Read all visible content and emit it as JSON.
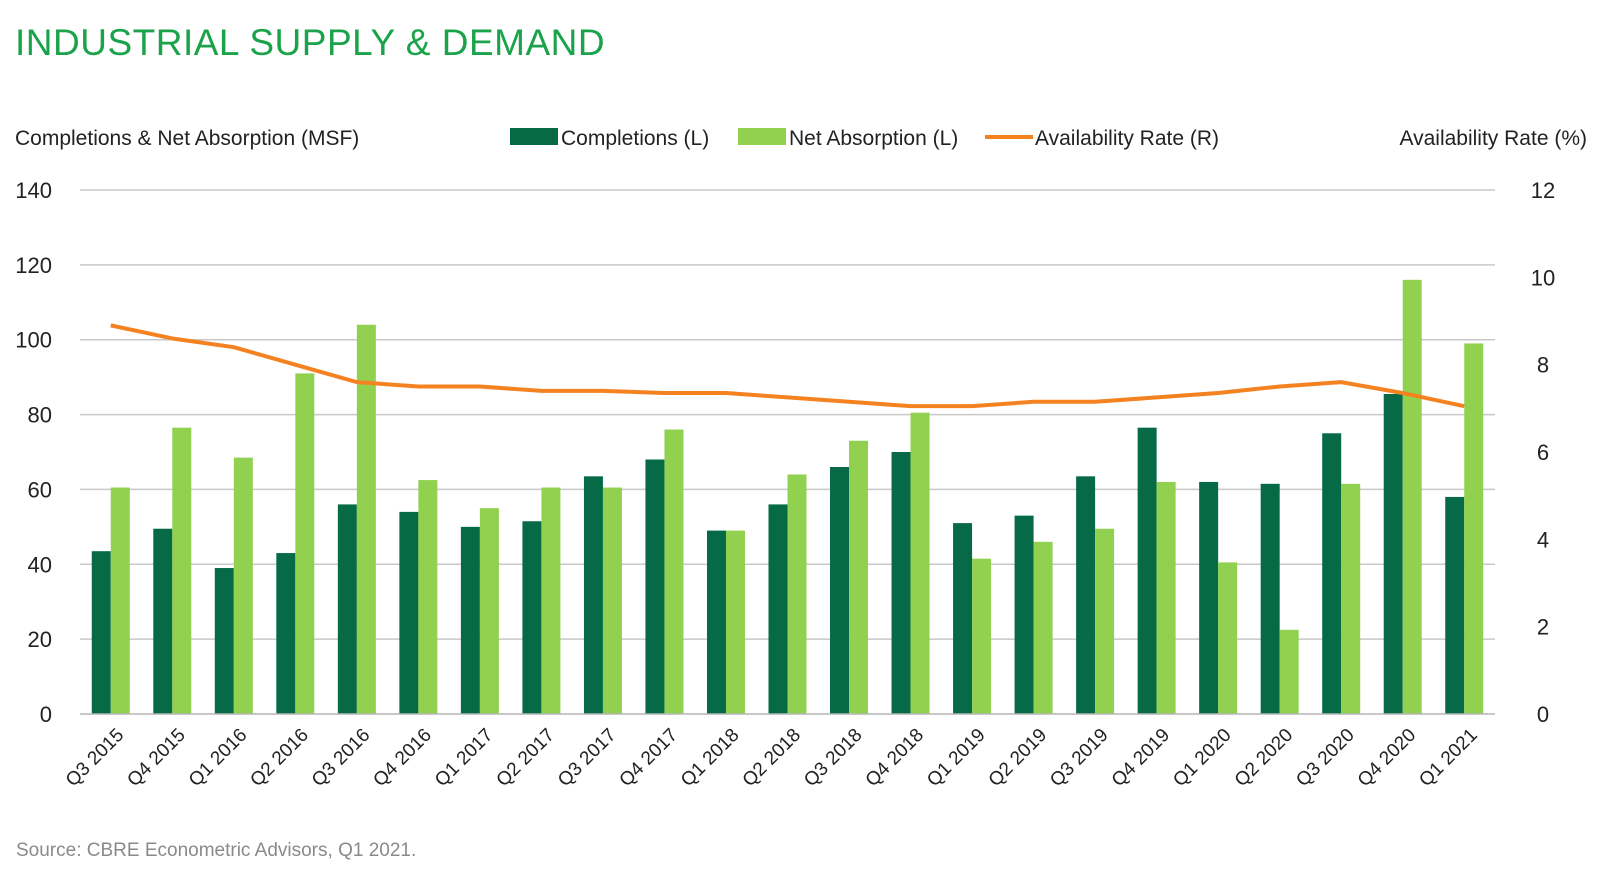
{
  "title": "INDUSTRIAL SUPPLY & DEMAND",
  "source": "Source: CBRE Econometric Advisors, Q1 2021.",
  "colors": {
    "title": "#1aa34a",
    "completions": "#056a45",
    "net_absorption": "#92d050",
    "availability_rate": "#f58220",
    "gridline": "#c8c8c8"
  },
  "chart_data": {
    "type": "bar",
    "title": "INDUSTRIAL SUPPLY & DEMAND",
    "ylabel": "Completions & Net Absorption (MSF)",
    "y2label": "Availability Rate (%)",
    "ylim": [
      0,
      140
    ],
    "y2lim": [
      0,
      12
    ],
    "yticks": [
      "0",
      "20",
      "40",
      "60",
      "80",
      "100",
      "120",
      "140"
    ],
    "y2ticks": [
      "0",
      "2",
      "4",
      "6",
      "8",
      "10",
      "12"
    ],
    "grid": true,
    "legend_position": "top-center",
    "categories": [
      "Q3 2015",
      "Q4 2015",
      "Q1 2016",
      "Q2 2016",
      "Q3 2016",
      "Q4 2016",
      "Q1 2017",
      "Q2 2017",
      "Q3 2017",
      "Q4 2017",
      "Q1 2018",
      "Q2 2018",
      "Q3 2018",
      "Q4 2018",
      "Q1 2019",
      "Q2 2019",
      "Q3 2019",
      "Q4 2019",
      "Q1 2020",
      "Q2 2020",
      "Q3 2020",
      "Q4 2020",
      "Q1 2021"
    ],
    "series": [
      {
        "name": "Completions (L)",
        "type": "bar",
        "axis": "left",
        "values": [
          43.5,
          49.5,
          39,
          43,
          56,
          54,
          50,
          51.5,
          63.5,
          68,
          49,
          56,
          66,
          70,
          51,
          53,
          63.5,
          76.5,
          62,
          61.5,
          75,
          85.5,
          58
        ]
      },
      {
        "name": "Net Absorption (L)",
        "type": "bar",
        "axis": "left",
        "values": [
          60.5,
          76.5,
          68.5,
          91,
          104,
          62.5,
          55,
          60.5,
          60.5,
          76,
          49,
          64,
          73,
          80.5,
          41.5,
          46,
          49.5,
          62,
          40.5,
          22.5,
          61.5,
          116,
          99
        ]
      },
      {
        "name": "Availability Rate (R)",
        "type": "line",
        "axis": "right",
        "values": [
          8.9,
          8.6,
          8.4,
          8.0,
          7.6,
          7.5,
          7.5,
          7.4,
          7.4,
          7.35,
          7.35,
          7.25,
          7.15,
          7.05,
          7.05,
          7.15,
          7.15,
          7.25,
          7.35,
          7.5,
          7.6,
          7.35,
          7.05
        ]
      }
    ]
  }
}
